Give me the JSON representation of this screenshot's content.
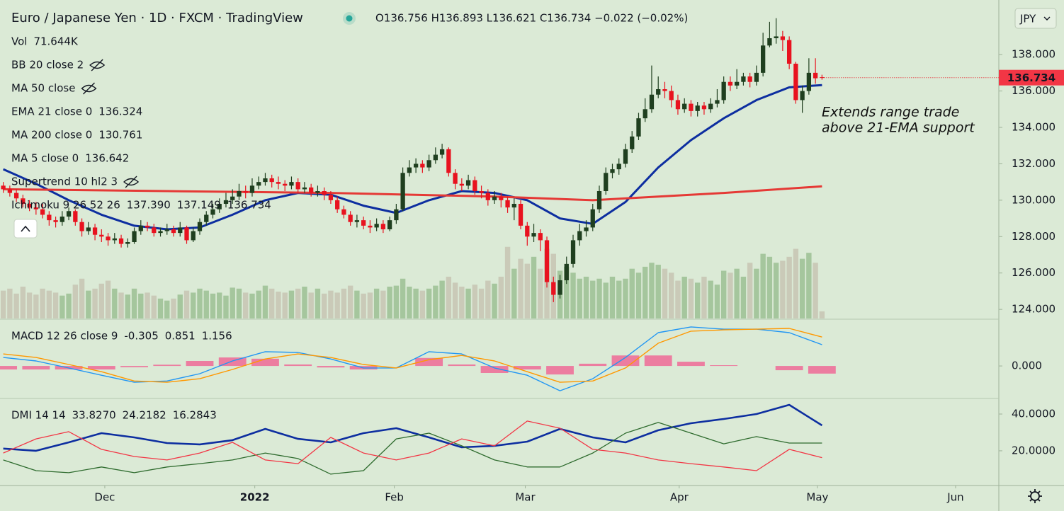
{
  "chart_data": [
    {
      "type": "candlestick",
      "title": "Euro / Japanese Yen · 1D · FXCM · TradingView",
      "ohlc_text": "O136.756 H136.893 L136.621 C136.734 −0.022 (−0.02%)",
      "currency": "JPY",
      "annotation": [
        "Extends range trade",
        "above 21-EMA support"
      ],
      "xlim": [
        -0.5,
        152
      ],
      "xticks": [
        {
          "value": 15.5,
          "label": "Dec"
        },
        {
          "value": 38.4,
          "label": "2022"
        },
        {
          "value": 59.7,
          "label": "Feb"
        },
        {
          "value": 79.7,
          "label": "Mar"
        },
        {
          "value": 103.2,
          "label": "Apr"
        },
        {
          "value": 124.3,
          "label": "May"
        },
        {
          "value": 145.4,
          "label": "Jun"
        }
      ],
      "ylim": [
        123.5,
        141
      ],
      "yticks": [
        {
          "value": 124,
          "label": "124.000"
        },
        {
          "value": 126,
          "label": "126.000"
        },
        {
          "value": 128,
          "label": "128.000"
        },
        {
          "value": 130,
          "label": "130.000"
        },
        {
          "value": 132,
          "label": "132.000"
        },
        {
          "value": 134,
          "label": "134.000"
        },
        {
          "value": 136,
          "label": "136.000"
        },
        {
          "value": 138,
          "label": "138.000"
        }
      ],
      "up_color": "#1f3f1f",
      "down_color": "#e8121f",
      "open": [
        130.8,
        130.6,
        130.4,
        130.1,
        129.8,
        129.6,
        129.5,
        129.2,
        128.9,
        128.8,
        129.1,
        129.4,
        128.8,
        128.3,
        128.5,
        128.1,
        128.0,
        127.8,
        127.9,
        127.6,
        127.7,
        128.3,
        128.6,
        128.5,
        128.2,
        128.3,
        128.4,
        128.2,
        128.5,
        127.8,
        128.3,
        128.8,
        129.2,
        129.5,
        129.8,
        130.0,
        130.2,
        130.5,
        130.4,
        130.8,
        131.0,
        131.2,
        131.0,
        130.9,
        130.8,
        131.0,
        130.6,
        130.7,
        130.4,
        130.5,
        130.3,
        130.0,
        129.5,
        129.2,
        128.8,
        128.9,
        128.6,
        128.5,
        128.7,
        128.4,
        128.9,
        129.5,
        131.5,
        131.8,
        132.0,
        131.8,
        132.2,
        132.5,
        132.8,
        131.5,
        130.9,
        130.8,
        131.1,
        130.5,
        130.4,
        130.0,
        130.2,
        130.0,
        129.6,
        129.8,
        128.6,
        128.0,
        128.2,
        127.8,
        125.5,
        124.8,
        125.6,
        126.5,
        127.8,
        128.3,
        128.5,
        129.5,
        130.5,
        131.5,
        131.7,
        132.0,
        132.8,
        133.5,
        134.5,
        135.0,
        135.8,
        136.1,
        136.0,
        135.5,
        135.0,
        135.3,
        134.9,
        135.2,
        135.0,
        135.3,
        135.5,
        136.5,
        136.3,
        136.5,
        136.8,
        136.5,
        137.0,
        138.5,
        138.9,
        139.0,
        138.8,
        137.5,
        135.5,
        136.0,
        137.0,
        136.756
      ],
      "high": [
        131.0,
        130.8,
        130.6,
        130.3,
        130.0,
        129.9,
        129.8,
        129.4,
        129.1,
        129.4,
        129.6,
        129.5,
        129.0,
        128.8,
        128.7,
        128.4,
        128.2,
        128.2,
        128.1,
        127.9,
        128.5,
        128.9,
        128.8,
        128.7,
        128.5,
        128.7,
        128.6,
        128.8,
        128.6,
        128.5,
        129.0,
        129.4,
        129.8,
        130.1,
        130.4,
        130.6,
        130.9,
        130.8,
        131.2,
        131.3,
        131.5,
        131.4,
        131.3,
        131.1,
        131.3,
        131.2,
        131.0,
        130.9,
        130.8,
        130.7,
        130.5,
        130.2,
        129.7,
        129.4,
        129.2,
        129.1,
        128.9,
        129.0,
        128.9,
        129.1,
        129.8,
        131.8,
        132.2,
        132.3,
        132.2,
        132.5,
        132.9,
        133.1,
        132.9,
        131.7,
        131.2,
        131.4,
        131.3,
        130.8,
        130.6,
        130.5,
        130.4,
        130.2,
        130.1,
        130.0,
        128.8,
        128.7,
        128.4,
        128.0,
        125.8,
        125.9,
        126.9,
        128.1,
        128.7,
        128.9,
        129.8,
        130.8,
        131.8,
        132.0,
        132.3,
        133.1,
        133.8,
        134.8,
        135.6,
        137.4,
        136.8,
        136.5,
        136.3,
        135.8,
        135.6,
        135.5,
        135.4,
        135.4,
        135.6,
        136.1,
        136.8,
        136.8,
        137.2,
        137.0,
        137.0,
        137.4,
        139.2,
        139.8,
        140.0,
        139.3,
        139.0,
        137.6,
        136.3,
        137.8,
        137.8,
        136.893
      ],
      "low": [
        130.4,
        130.2,
        129.9,
        129.6,
        129.4,
        129.2,
        129.0,
        128.6,
        128.5,
        128.6,
        128.9,
        128.6,
        128.0,
        128.1,
        127.8,
        127.7,
        127.5,
        127.6,
        127.4,
        127.4,
        127.6,
        128.1,
        128.3,
        128.0,
        128.0,
        128.1,
        128.0,
        128.0,
        127.6,
        127.7,
        128.1,
        128.6,
        129.0,
        129.3,
        129.6,
        129.8,
        130.0,
        130.1,
        130.2,
        130.6,
        130.8,
        130.7,
        130.6,
        130.5,
        130.6,
        130.4,
        130.4,
        130.2,
        130.2,
        130.0,
        129.8,
        129.3,
        129.0,
        128.6,
        128.5,
        128.4,
        128.2,
        128.3,
        128.2,
        128.3,
        128.7,
        129.4,
        131.3,
        131.5,
        131.5,
        131.6,
        132.0,
        132.3,
        131.3,
        130.6,
        130.5,
        130.6,
        130.3,
        130.1,
        129.7,
        129.8,
        129.6,
        129.3,
        128.9,
        128.4,
        127.5,
        127.7,
        127.2,
        125.2,
        124.4,
        124.6,
        125.4,
        126.3,
        127.5,
        128.0,
        128.3,
        129.3,
        130.3,
        131.2,
        131.4,
        131.8,
        132.6,
        133.3,
        134.3,
        134.8,
        135.6,
        135.6,
        135.1,
        134.7,
        134.8,
        134.6,
        134.6,
        134.7,
        134.8,
        135.1,
        135.3,
        136.0,
        136.1,
        136.3,
        136.2,
        136.3,
        136.8,
        138.4,
        138.6,
        138.2,
        137.2,
        135.3,
        134.8,
        135.8,
        136.4,
        136.621
      ],
      "close": [
        130.6,
        130.4,
        130.1,
        129.8,
        129.6,
        129.5,
        129.2,
        128.9,
        128.8,
        129.1,
        129.4,
        128.8,
        128.3,
        128.5,
        128.1,
        128.0,
        127.8,
        127.9,
        127.6,
        127.7,
        128.3,
        128.6,
        128.5,
        128.2,
        128.3,
        128.4,
        128.2,
        128.5,
        127.8,
        128.3,
        128.8,
        129.2,
        129.5,
        129.8,
        130.0,
        130.2,
        130.5,
        130.4,
        130.8,
        131.0,
        131.2,
        131.0,
        130.9,
        130.8,
        131.0,
        130.6,
        130.7,
        130.4,
        130.5,
        130.3,
        130.0,
        129.5,
        129.2,
        128.8,
        128.9,
        128.6,
        128.5,
        128.7,
        128.4,
        128.9,
        129.5,
        131.5,
        131.8,
        132.0,
        131.8,
        132.2,
        132.5,
        132.8,
        131.5,
        130.9,
        130.8,
        131.1,
        130.5,
        130.4,
        130.0,
        130.2,
        130.0,
        129.6,
        129.8,
        128.6,
        128.0,
        128.2,
        127.8,
        125.5,
        124.8,
        125.6,
        126.5,
        127.8,
        128.3,
        128.5,
        129.5,
        130.5,
        131.5,
        131.7,
        132.0,
        132.8,
        133.5,
        134.5,
        135.0,
        135.8,
        136.1,
        136.0,
        135.5,
        135.0,
        135.3,
        134.9,
        135.2,
        135.0,
        135.3,
        135.5,
        136.5,
        136.3,
        136.5,
        136.8,
        136.5,
        137.0,
        138.5,
        138.9,
        139.0,
        138.8,
        137.5,
        135.5,
        136.0,
        137.0,
        136.7,
        136.734
      ],
      "volume": {
        "name": "Vol",
        "value_label": "71.644K",
        "ylim": [
          0,
          3200
        ],
        "up_color": "#93b98a",
        "down_color": "#c4bfae",
        "values": [
          280,
          300,
          250,
          320,
          260,
          240,
          300,
          280,
          260,
          230,
          250,
          340,
          400,
          280,
          300,
          350,
          380,
          300,
          260,
          240,
          300,
          250,
          260,
          230,
          200,
          180,
          200,
          240,
          280,
          260,
          300,
          280,
          250,
          260,
          230,
          310,
          300,
          260,
          250,
          280,
          330,
          300,
          270,
          260,
          280,
          300,
          320,
          260,
          300,
          250,
          280,
          260,
          300,
          330,
          280,
          250,
          260,
          300,
          280,
          320,
          330,
          400,
          320,
          300,
          280,
          300,
          330,
          380,
          420,
          360,
          320,
          300,
          340,
          300,
          380,
          350,
          420,
          720,
          500,
          600,
          550,
          620,
          500,
          700,
          650,
          480,
          520,
          460,
          400,
          420,
          380,
          400,
          360,
          420,
          380,
          400,
          500,
          460,
          520,
          560,
          540,
          500,
          460,
          380,
          420,
          400,
          360,
          420,
          380,
          340,
          480,
          460,
          500,
          420,
          560,
          500,
          650,
          620,
          560,
          580,
          620,
          700,
          600,
          660,
          560,
          71.644
        ]
      },
      "series": [
        {
          "name": "EMA 21 close 0",
          "color": "#0d2ea0",
          "x": [
            0,
            5,
            10,
            15,
            20,
            25,
            30,
            35,
            40,
            45,
            50,
            55,
            60,
            65,
            70,
            75,
            80,
            85,
            90,
            95,
            100,
            105,
            110,
            115,
            120,
            125
          ],
          "values": [
            131.7,
            130.9,
            130.0,
            129.2,
            128.6,
            128.4,
            128.5,
            129.2,
            130.0,
            130.4,
            130.3,
            129.7,
            129.3,
            130.0,
            130.5,
            130.4,
            130.0,
            129.0,
            128.7,
            129.9,
            131.8,
            133.3,
            134.5,
            135.5,
            136.2,
            136.324
          ]
        },
        {
          "name": "MA 200 close 0",
          "color": "#e53935",
          "x": [
            0,
            25,
            50,
            75,
            90,
            100,
            110,
            125
          ],
          "values": [
            130.6,
            130.5,
            130.4,
            130.2,
            130.0,
            130.2,
            130.4,
            130.761
          ]
        }
      ],
      "indicators": [
        {
          "name": "BB 20 close 2",
          "hidden": true
        },
        {
          "name": "MA 50 close",
          "hidden": true
        },
        {
          "name": "MA 5 close 0",
          "value": 136.642,
          "color": "#f23645"
        },
        {
          "name": "Supertrend 10 hl2 3",
          "hidden": true
        },
        {
          "name": "Ichimoku 9 26 52 26",
          "labels": [
            "137.390",
            "137.149",
            "136.734"
          ],
          "colors": [
            "#2962ff",
            "#8b1a1a",
            "#388e3c"
          ]
        }
      ]
    },
    {
      "type": "combo",
      "name": "MACD 12 26 close 9",
      "x": [
        0,
        5,
        10,
        15,
        20,
        25,
        30,
        35,
        40,
        45,
        50,
        55,
        60,
        65,
        70,
        75,
        80,
        85,
        90,
        95,
        100,
        105,
        110,
        115,
        120,
        125
      ],
      "ylim": [
        -1.27,
        1.84
      ],
      "yticks": [
        {
          "value": 0,
          "label": "0.000"
        }
      ],
      "histogram": {
        "color": "#f06292",
        "values": [
          -0.14,
          -0.14,
          -0.14,
          -0.14,
          -0.05,
          0.05,
          0.2,
          0.34,
          0.29,
          0.06,
          -0.06,
          -0.14,
          0,
          0.32,
          0.06,
          -0.28,
          -0.14,
          -0.34,
          0.09,
          0.42,
          0.42,
          0.17,
          0.03,
          0,
          -0.17,
          -0.305
        ]
      },
      "series": [
        {
          "color": "#2196f3",
          "values": [
            0.34,
            0.2,
            -0.08,
            -0.37,
            -0.65,
            -0.6,
            -0.31,
            0.2,
            0.57,
            0.54,
            0.28,
            -0.08,
            -0.08,
            0.57,
            0.48,
            -0.08,
            -0.37,
            -0.99,
            -0.51,
            0.34,
            1.33,
            1.56,
            1.47,
            1.47,
            1.33,
            0.851
          ]
        },
        {
          "color": "#ff9800",
          "values": [
            0.48,
            0.34,
            0.06,
            -0.23,
            -0.6,
            -0.65,
            -0.51,
            -0.14,
            0.28,
            0.48,
            0.34,
            0.06,
            -0.08,
            0.25,
            0.42,
            0.2,
            -0.23,
            -0.65,
            -0.6,
            -0.08,
            0.91,
            1.39,
            1.44,
            1.47,
            1.5,
            1.156
          ]
        }
      ]
    },
    {
      "type": "line",
      "name": "DMI 14 14",
      "x": [
        0,
        5,
        10,
        15,
        20,
        25,
        30,
        35,
        40,
        45,
        50,
        55,
        60,
        65,
        70,
        75,
        80,
        85,
        90,
        95,
        100,
        105,
        110,
        115,
        120,
        125
      ],
      "ylim": [
        1.5,
        47.7
      ],
      "yticks": [
        {
          "value": 20,
          "label": "20.0000"
        },
        {
          "value": 40,
          "label": "40.0000"
        }
      ],
      "series": [
        {
          "color": "#0d2ea0",
          "last_label": "33.8270",
          "values": [
            21.2,
            20,
            24.6,
            29.6,
            27.3,
            24.2,
            23.5,
            25.8,
            31.9,
            26.5,
            24.6,
            29.6,
            32.3,
            27.3,
            21.9,
            22.7,
            25,
            31.9,
            27.3,
            24.6,
            31.2,
            35,
            37.3,
            40,
            45,
            33.827
          ]
        },
        {
          "color": "#2e6b2e",
          "values": [
            15,
            9.2,
            8.1,
            11.2,
            8.1,
            11.2,
            13,
            15,
            18.8,
            15.8,
            7.3,
            9.2,
            26.5,
            29.6,
            22.7,
            15,
            11.2,
            11.2,
            18.8,
            29.6,
            35.4,
            29.6,
            23.8,
            27.7,
            24.2,
            24.2182
          ]
        },
        {
          "color": "#f23645",
          "values": [
            18.8,
            26.5,
            30.4,
            20.8,
            16.9,
            15,
            18.8,
            24.6,
            15,
            13,
            27.3,
            18.8,
            15,
            18.8,
            26.5,
            22.7,
            36.2,
            32.3,
            20.8,
            18.8,
            15,
            13,
            11.2,
            9.2,
            20.8,
            16.2843
          ]
        }
      ]
    }
  ]
}
